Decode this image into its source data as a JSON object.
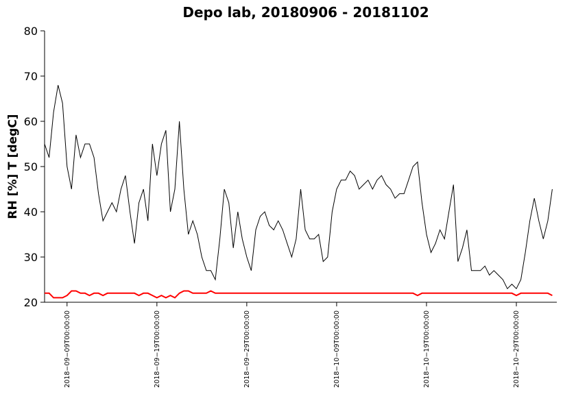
{
  "chart_data": {
    "type": "line",
    "title": "Depo lab, 20180906 - 20181102",
    "ylabel": "RH [%] T [degC]",
    "x": [
      "2018-09-06T12:00:00",
      "2018-09-07T00:00:00",
      "2018-09-07T12:00:00",
      "2018-09-08T00:00:00",
      "2018-09-08T12:00:00",
      "2018-09-09T00:00:00",
      "2018-09-09T12:00:00",
      "2018-09-10T00:00:00",
      "2018-09-10T12:00:00",
      "2018-09-11T00:00:00",
      "2018-09-11T12:00:00",
      "2018-09-12T00:00:00",
      "2018-09-12T12:00:00",
      "2018-09-13T00:00:00",
      "2018-09-13T12:00:00",
      "2018-09-14T00:00:00",
      "2018-09-14T12:00:00",
      "2018-09-15T00:00:00",
      "2018-09-15T12:00:00",
      "2018-09-16T00:00:00",
      "2018-09-16T12:00:00",
      "2018-09-17T00:00:00",
      "2018-09-17T12:00:00",
      "2018-09-18T00:00:00",
      "2018-09-18T12:00:00",
      "2018-09-19T00:00:00",
      "2018-09-19T12:00:00",
      "2018-09-20T00:00:00",
      "2018-09-20T12:00:00",
      "2018-09-21T00:00:00",
      "2018-09-21T12:00:00",
      "2018-09-22T00:00:00",
      "2018-09-22T12:00:00",
      "2018-09-23T00:00:00",
      "2018-09-23T12:00:00",
      "2018-09-24T00:00:00",
      "2018-09-24T12:00:00",
      "2018-09-25T00:00:00",
      "2018-09-25T12:00:00",
      "2018-09-26T00:00:00",
      "2018-09-26T12:00:00",
      "2018-09-27T00:00:00",
      "2018-09-27T12:00:00",
      "2018-09-28T00:00:00",
      "2018-09-28T12:00:00",
      "2018-09-29T00:00:00",
      "2018-09-29T12:00:00",
      "2018-09-30T00:00:00",
      "2018-09-30T12:00:00",
      "2018-10-01T00:00:00",
      "2018-10-01T12:00:00",
      "2018-10-02T00:00:00",
      "2018-10-02T12:00:00",
      "2018-10-03T00:00:00",
      "2018-10-03T12:00:00",
      "2018-10-04T00:00:00",
      "2018-10-04T12:00:00",
      "2018-10-05T00:00:00",
      "2018-10-05T12:00:00",
      "2018-10-06T00:00:00",
      "2018-10-06T12:00:00",
      "2018-10-07T00:00:00",
      "2018-10-07T12:00:00",
      "2018-10-08T00:00:00",
      "2018-10-08T12:00:00",
      "2018-10-09T00:00:00",
      "2018-10-09T12:00:00",
      "2018-10-10T00:00:00",
      "2018-10-10T12:00:00",
      "2018-10-11T00:00:00",
      "2018-10-11T12:00:00",
      "2018-10-12T00:00:00",
      "2018-10-12T12:00:00",
      "2018-10-13T00:00:00",
      "2018-10-13T12:00:00",
      "2018-10-14T00:00:00",
      "2018-10-14T12:00:00",
      "2018-10-15T00:00:00",
      "2018-10-15T12:00:00",
      "2018-10-16T00:00:00",
      "2018-10-16T12:00:00",
      "2018-10-17T00:00:00",
      "2018-10-17T12:00:00",
      "2018-10-18T00:00:00",
      "2018-10-18T12:00:00",
      "2018-10-19T00:00:00",
      "2018-10-19T12:00:00",
      "2018-10-20T00:00:00",
      "2018-10-20T12:00:00",
      "2018-10-21T00:00:00",
      "2018-10-21T12:00:00",
      "2018-10-22T00:00:00",
      "2018-10-22T12:00:00",
      "2018-10-23T00:00:00",
      "2018-10-23T12:00:00",
      "2018-10-24T00:00:00",
      "2018-10-24T12:00:00",
      "2018-10-25T00:00:00",
      "2018-10-25T12:00:00",
      "2018-10-26T00:00:00",
      "2018-10-26T12:00:00",
      "2018-10-27T00:00:00",
      "2018-10-27T12:00:00",
      "2018-10-28T00:00:00",
      "2018-10-28T12:00:00",
      "2018-10-29T00:00:00",
      "2018-10-29T12:00:00",
      "2018-10-30T00:00:00",
      "2018-10-30T12:00:00",
      "2018-10-31T00:00:00",
      "2018-10-31T12:00:00",
      "2018-11-01T00:00:00",
      "2018-11-01T12:00:00",
      "2018-11-02T00:00:00"
    ],
    "series": [
      {
        "color": "#000000",
        "width": 1,
        "values": [
          55,
          52,
          62,
          68,
          64,
          50,
          45,
          57,
          52,
          55,
          55,
          52,
          44,
          38,
          40,
          42,
          40,
          45,
          48,
          40,
          33,
          42,
          45,
          38,
          55,
          48,
          55,
          58,
          40,
          45,
          60,
          45,
          35,
          38,
          35,
          30,
          27,
          27,
          25,
          34,
          45,
          42,
          32,
          40,
          34,
          30,
          27,
          36,
          39,
          40,
          37,
          36,
          38,
          36,
          33,
          30,
          34,
          45,
          36,
          34,
          34,
          35,
          29,
          30,
          40,
          45,
          47,
          47,
          49,
          48,
          45,
          46,
          47,
          45,
          47,
          48,
          46,
          45,
          43,
          44,
          44,
          47,
          50,
          51,
          42,
          35,
          31,
          33,
          36,
          34,
          40,
          46,
          29,
          32,
          36,
          27,
          27,
          27,
          28,
          26,
          27,
          26,
          25,
          23,
          24,
          23,
          25,
          31,
          38,
          43,
          38,
          34,
          38,
          45
        ]
      },
      {
        "color": "#ff0000",
        "width": 2,
        "values": [
          22,
          22,
          21,
          21,
          21,
          21.5,
          22.5,
          22.5,
          22,
          22,
          21.5,
          22,
          22,
          21.5,
          22,
          22,
          22,
          22,
          22,
          22,
          22,
          21.5,
          22,
          22,
          21.5,
          21,
          21.5,
          21,
          21.5,
          21,
          22,
          22.5,
          22.5,
          22,
          22,
          22,
          22,
          22.5,
          22,
          22,
          22,
          22,
          22,
          22,
          22,
          22,
          22,
          22,
          22,
          22,
          22,
          22,
          22,
          22,
          22,
          22,
          22,
          22,
          22,
          22,
          22,
          22,
          22,
          22,
          22,
          22,
          22,
          22,
          22,
          22,
          22,
          22,
          22,
          22,
          22,
          22,
          22,
          22,
          22,
          22,
          22,
          22,
          22,
          21.5,
          22,
          22,
          22,
          22,
          22,
          22,
          22,
          22,
          22,
          22,
          22,
          22,
          22,
          22,
          22,
          22,
          22,
          22,
          22,
          22,
          22,
          21.5,
          22,
          22,
          22,
          22,
          22,
          22,
          22,
          21.5
        ]
      }
    ],
    "xlim": [
      "2018-09-06T12:00:00",
      "2018-11-02T12:00:00"
    ],
    "xticks": [
      {
        "value": "2018-09-09T00:00:00",
        "label": "2018−09−09T00:00:00"
      },
      {
        "value": "2018-09-19T00:00:00",
        "label": "2018−09−19T00:00:00"
      },
      {
        "value": "2018-09-29T00:00:00",
        "label": "2018−09−29T00:00:00"
      },
      {
        "value": "2018-10-09T00:00:00",
        "label": "2018−10−09T00:00:00"
      },
      {
        "value": "2018-10-19T00:00:00",
        "label": "2018−10−19T00:00:00"
      },
      {
        "value": "2018-10-29T00:00:00",
        "label": "2018−10−29T00:00:00"
      }
    ],
    "ylim": [
      20,
      80
    ],
    "yticks": [
      20,
      30,
      40,
      50,
      60,
      70,
      80
    ],
    "grid": false
  }
}
